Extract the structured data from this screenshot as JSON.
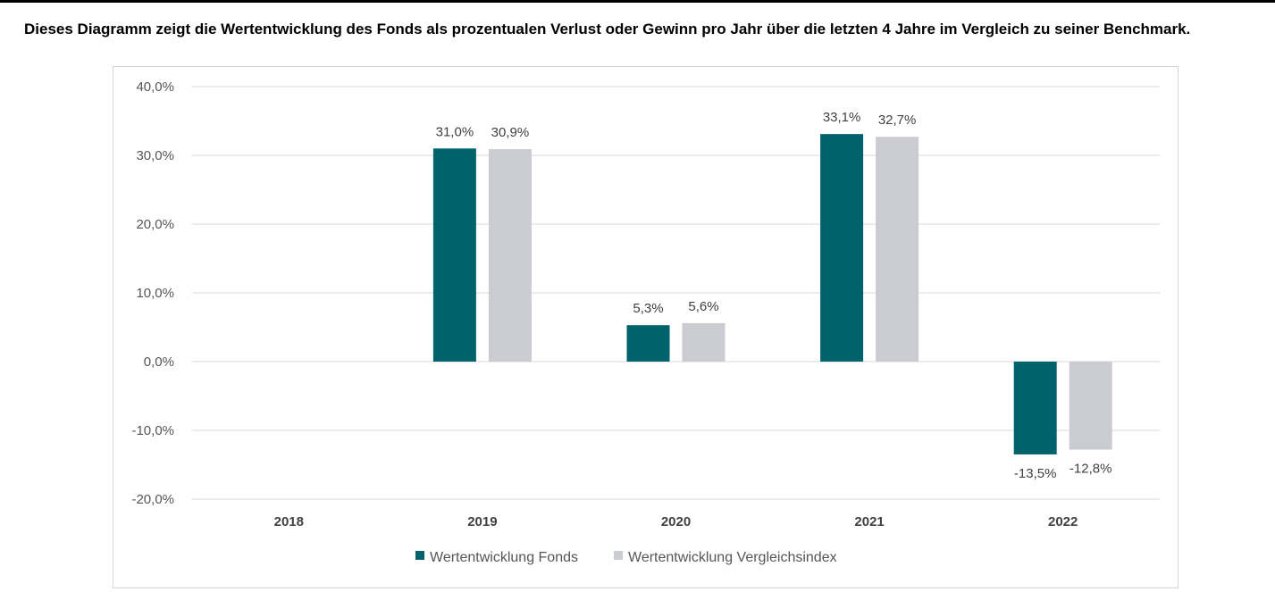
{
  "heading": "Dieses Diagramm zeigt die Wertentwicklung des Fonds als prozentualen Verlust oder Gewinn pro Jahr über die letzten 4 Jahre im Vergleich zu seiner Benchmark.",
  "chart_data": {
    "type": "bar",
    "title": "",
    "xlabel": "",
    "ylabel": "",
    "ylim": [
      -20,
      40
    ],
    "yticks": [
      40,
      30,
      20,
      10,
      0,
      -10,
      -20
    ],
    "ytick_labels": [
      "40,0%",
      "30,0%",
      "20,0%",
      "10,0%",
      "0,0%",
      "-10,0%",
      "-20,0%"
    ],
    "categories": [
      "2018",
      "2019",
      "2020",
      "2021",
      "2022"
    ],
    "series": [
      {
        "name": "Wertentwicklung Fonds",
        "color": "#00636b",
        "values": [
          null,
          31.0,
          5.3,
          33.1,
          -13.5
        ],
        "labels": [
          "",
          "31,0%",
          "5,3%",
          "33,1%",
          "-13,5%"
        ]
      },
      {
        "name": "Wertentwicklung Vergleichsindex",
        "color": "#cbcbd2",
        "values": [
          null,
          30.9,
          5.6,
          32.7,
          -12.8
        ],
        "labels": [
          "",
          "30,9%",
          "5,6%",
          "32,7%",
          "-12,8%"
        ]
      }
    ],
    "grid": true,
    "legend": "bottom"
  }
}
